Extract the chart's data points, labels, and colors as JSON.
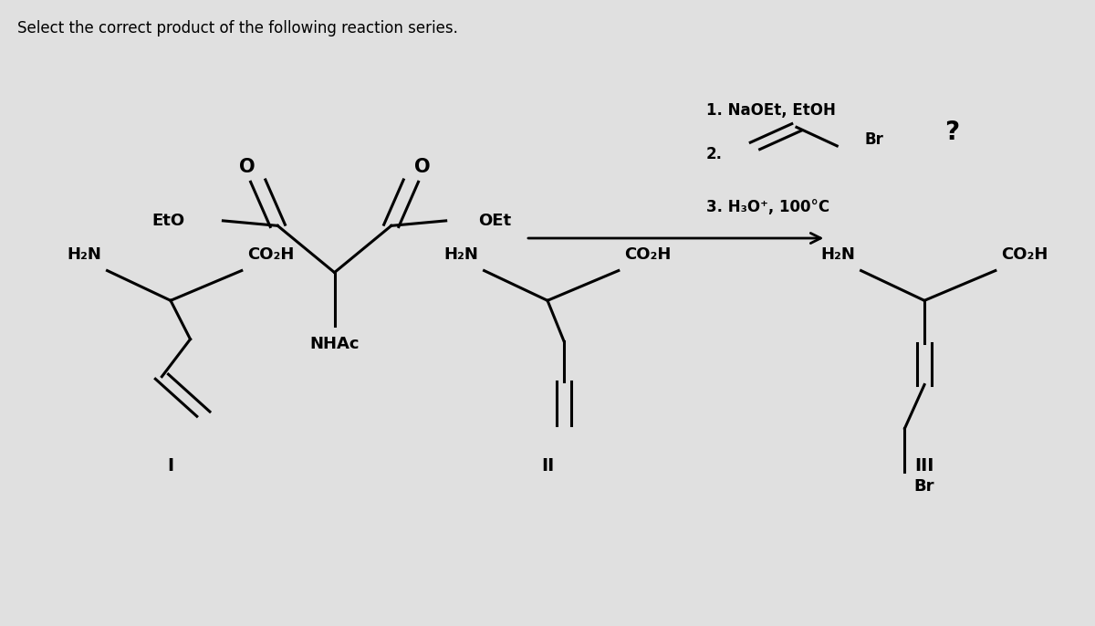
{
  "title_text": "Select the correct product of the following reaction series.",
  "title_fontsize": 12,
  "background_color": "#e0e0e0",
  "text_color": "#000000",
  "fig_width": 12.0,
  "fig_height": 6.86,
  "dpi": 100,
  "reactant_label_EtO": "EtO",
  "reactant_label_OEt": "OEt",
  "reactant_label_NHAc": "NHAc",
  "question_mark": "?",
  "product_labels": [
    "I",
    "II",
    "III"
  ],
  "label_H2N": "H₂N",
  "label_CO2H": "CO₂H",
  "label_Br": "Br",
  "cond1": "1. NaOEt, EtOH",
  "cond2": "2.",
  "cond3": "3. H₃O⁺, 100°C"
}
